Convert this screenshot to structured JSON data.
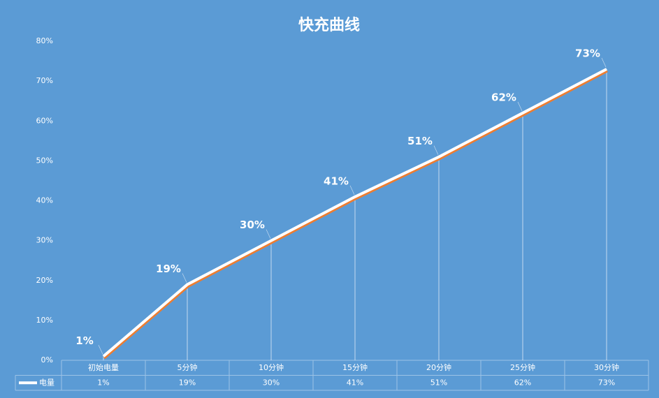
{
  "chart_data": {
    "type": "line",
    "title": "快充曲线",
    "categories": [
      "初始电量",
      "5分钟",
      "10分钟",
      "15分钟",
      "20分钟",
      "25分钟",
      "30分钟"
    ],
    "series": [
      {
        "name": "电量",
        "color": "#ffffff",
        "shadow_color": "#ed7d31",
        "values": [
          1,
          19,
          30,
          41,
          51,
          62,
          73
        ],
        "value_labels": [
          "1%",
          "19%",
          "30%",
          "41%",
          "51%",
          "62%",
          "73%"
        ]
      }
    ],
    "ylim": [
      0,
      80
    ],
    "yticks": [
      {
        "value": 0,
        "label": "0%"
      },
      {
        "value": 10,
        "label": "10%"
      },
      {
        "value": 20,
        "label": "20%"
      },
      {
        "value": 30,
        "label": "30%"
      },
      {
        "value": 40,
        "label": "40%"
      },
      {
        "value": 50,
        "label": "50%"
      },
      {
        "value": 60,
        "label": "60%"
      },
      {
        "value": 70,
        "label": "70%"
      },
      {
        "value": 80,
        "label": "80%"
      }
    ],
    "drop_lines": true,
    "data_table": true
  }
}
